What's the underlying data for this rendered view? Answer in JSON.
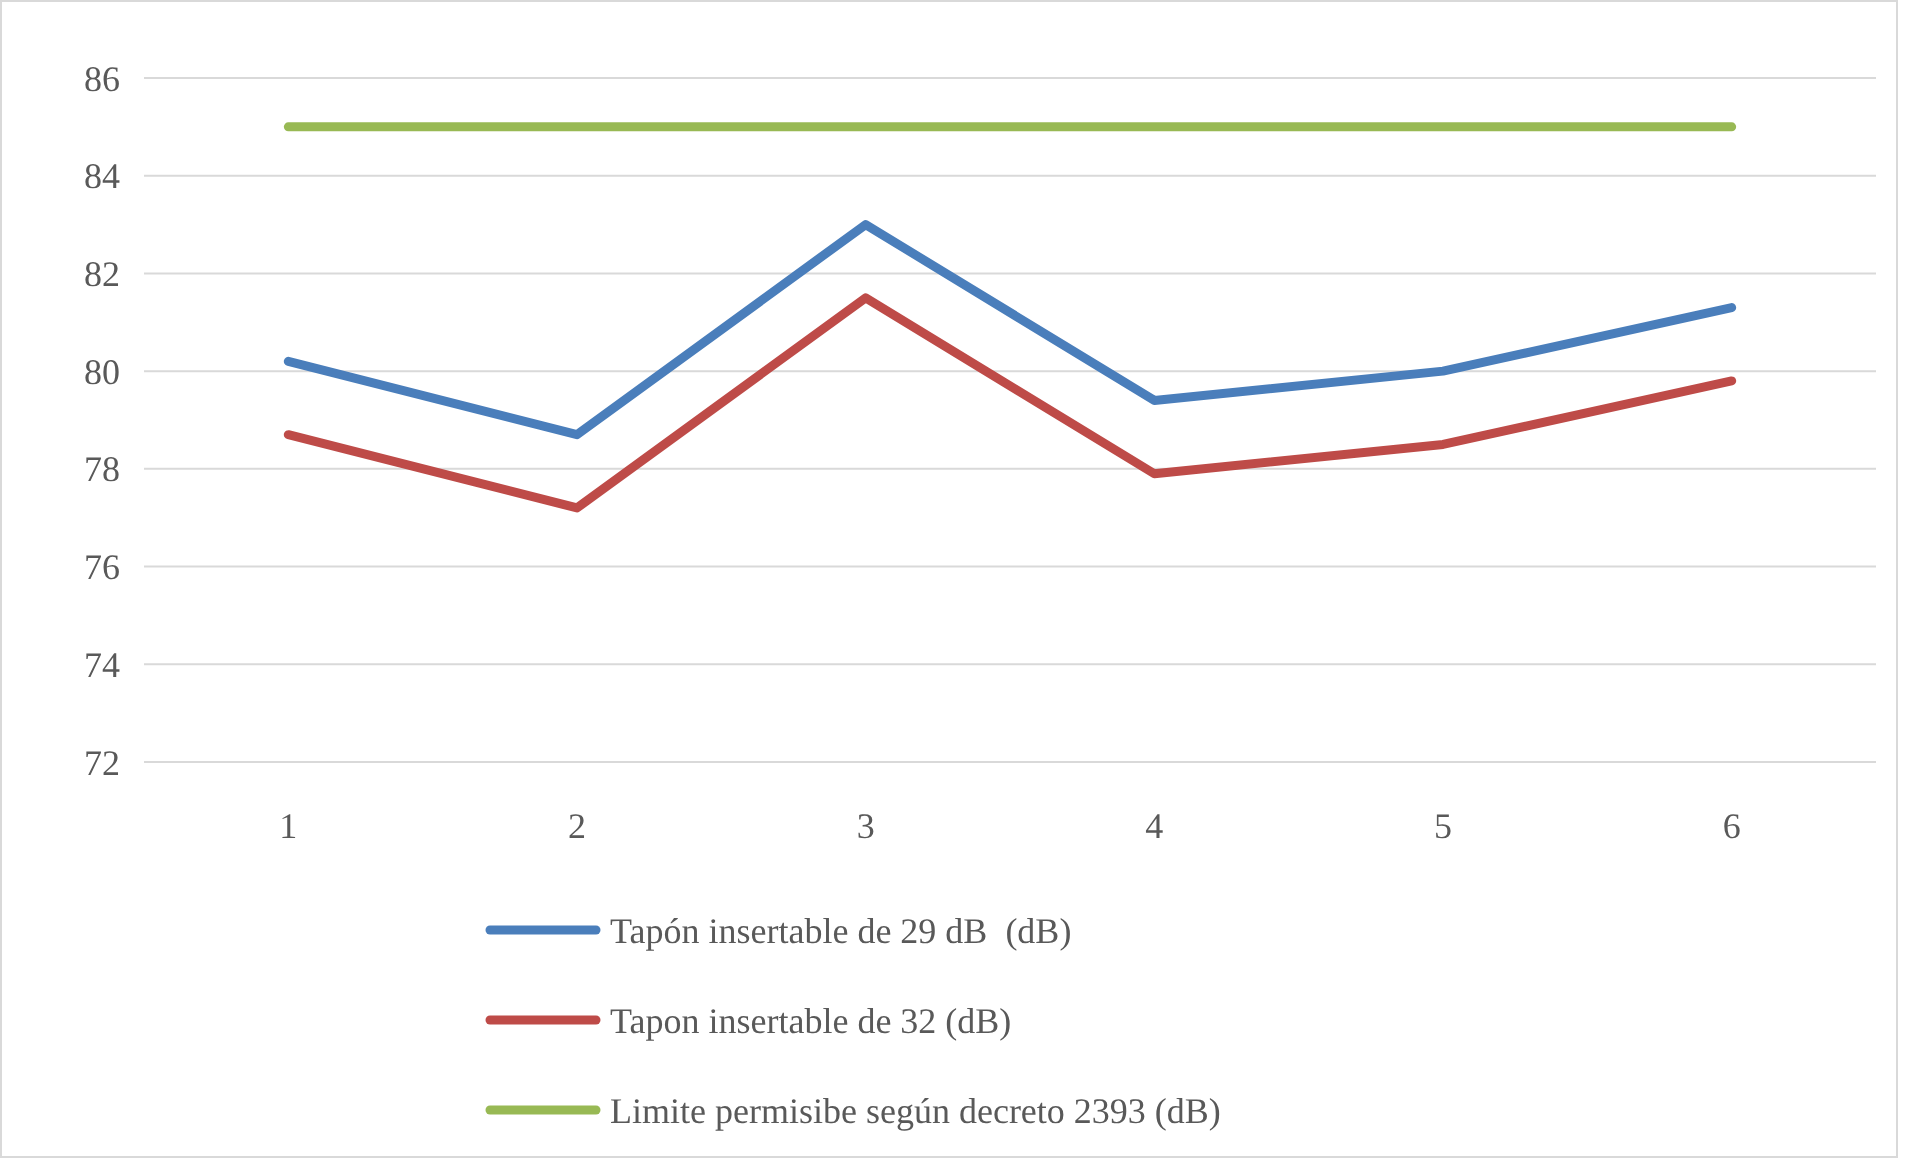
{
  "chart_data": {
    "type": "line",
    "categories": [
      "1",
      "2",
      "3",
      "4",
      "5",
      "6"
    ],
    "series": [
      {
        "name": "Tapón insertable de 29 dB  (dB)",
        "color": "#4a7ebb",
        "values": [
          80.2,
          78.7,
          83.0,
          79.4,
          80.0,
          81.3
        ]
      },
      {
        "name": "Tapon insertable de 32 (dB)",
        "color": "#be4b48",
        "values": [
          78.7,
          77.2,
          81.5,
          77.9,
          78.5,
          79.8
        ]
      },
      {
        "name": "Limite permisibe según decreto 2393 (dB)",
        "color": "#98b954",
        "values": [
          85,
          85,
          85,
          85,
          85,
          85
        ]
      }
    ],
    "ylim": [
      72,
      86
    ],
    "yticks": [
      72,
      74,
      76,
      78,
      80,
      82,
      84,
      86
    ],
    "grid": "y",
    "legend": "bottom",
    "marker": "none",
    "line_style": "solid"
  }
}
